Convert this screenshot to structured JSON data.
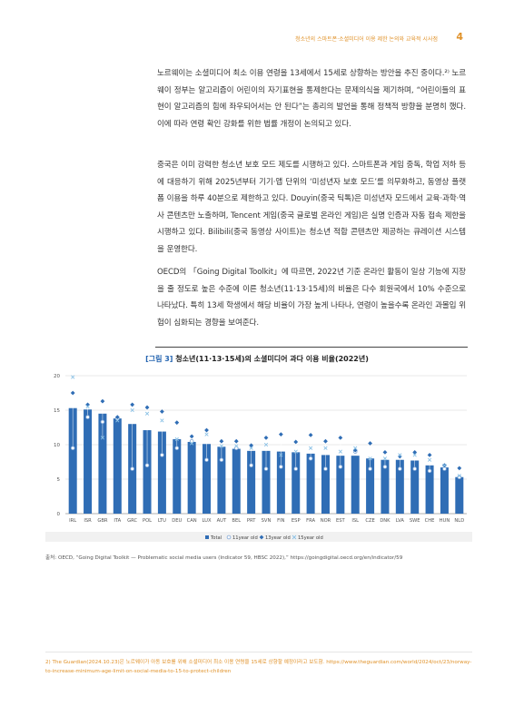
{
  "header": {
    "running_title": "청소년의 스마트폰·소셜미디어 이용 제한 논의와 교육적 시사점",
    "page_number": "4"
  },
  "paragraphs": [
    "노르웨이는 소셜미디어 최소 이용 연령을 13세에서 15세로 상향하는 방안을 추진 중이다.²⁾ 노르웨이 정부는 알고리즘이 어린이의 자기표현을 통제한다는 문제의식을 제기하며, “어린이들의 표현이 알고리즘의 힘에 좌우되어서는 안 된다”는 총리의 발언을 통해 정책적 방향을 분명히 했다. 이에 따라 연령 확인 강화를 위한 법률 개정이 논의되고 있다.",
    "중국은 이미 강력한 청소년 보호 모드 제도를 시행하고 있다. 스마트폰과 게임 중독, 학업 저하 등에 대응하기 위해 2025년부터 기기·앱 단위의 ‘미성년자 보호 모드’를 의무화하고, 동영상 플랫폼 이용을 하루 40분으로 제한하고 있다. Douyin(중국 틱톡)은 미성년자 모드에서 교육·과학·역사 콘텐츠만 노출하며, Tencent 게임(중국 글로벌 온라인 게임)은 실명 인증과 자동 접속 제한을 시행하고 있다. Bilibili(중국 동영상 사이트)는 청소년 적합 콘텐츠만 제공하는 큐레이션 시스템을 운영한다.",
    "OECD의 「Going Digital Toolkit」에 따르면, 2022년 기준 온라인 활동이 일상 기능에 지장을 줄 정도로 높은 수준에 이른 청소년(11·13·15세)의 비율은 다수 회원국에서 10% 수준으로 나타났다. 특히 13세 학생에서 해당 비율이 가장 높게 나타나, 연령이 높을수록 온라인 과몰입 위험이 심화되는 경향을 보여준다."
  ],
  "figure": {
    "tag": "[그림 3]",
    "title": "청소년(11·13·15세)의 소셜미디어 과다 이용 비율(2022년)"
  },
  "chart_data": {
    "type": "bar",
    "categories": [
      "IRL",
      "ISR",
      "GBR",
      "ITA",
      "GRC",
      "POL",
      "LTU",
      "DEU",
      "CAN",
      "LUX",
      "AUT",
      "BEL",
      "PRT",
      "SVN",
      "FIN",
      "ESP",
      "FRA",
      "NOR",
      "EST",
      "ISL",
      "CZE",
      "DNK",
      "LVA",
      "SWE",
      "CHE",
      "HUN",
      "NLD"
    ],
    "ylim": [
      0,
      20
    ],
    "yticks": [
      0,
      5,
      10,
      15,
      20
    ],
    "grid": true,
    "legend_position": "bottom",
    "series": [
      {
        "name": "Total",
        "marker": "bar",
        "color": "#2f6db5",
        "values": [
          15.3,
          15.1,
          14.5,
          13.8,
          13.0,
          12.1,
          11.9,
          10.8,
          10.4,
          10.1,
          9.7,
          9.4,
          9.1,
          9.1,
          9.0,
          8.9,
          8.7,
          8.5,
          8.4,
          8.4,
          8.0,
          7.8,
          7.8,
          7.7,
          7.0,
          6.7,
          5.3
        ]
      },
      {
        "name": "11year old",
        "marker": "circle-hollow",
        "color": "#7fa6d6",
        "values": [
          9.5,
          14.0,
          13.3,
          13.8,
          6.5,
          7.0,
          8.5,
          9.5,
          10.5,
          7.8,
          7.8,
          9.5,
          7.0,
          6.5,
          6.8,
          6.5,
          8.0,
          6.5,
          6.8,
          9.0,
          6.5,
          6.8,
          6.5,
          6.5,
          6.2,
          6.5,
          5.3
        ]
      },
      {
        "name": "13year old",
        "marker": "diamond",
        "color": "#2f6db5",
        "values": [
          17.5,
          15.8,
          16.3,
          14.0,
          15.8,
          15.4,
          14.8,
          13.2,
          11.2,
          12.1,
          10.5,
          10.5,
          9.9,
          11.0,
          11.5,
          10.4,
          11.4,
          10.5,
          11.0,
          9.2,
          10.2,
          8.9,
          8.3,
          8.9,
          8.5,
          7.0,
          6.6
        ]
      },
      {
        "name": "15year old",
        "marker": "x",
        "color": "#8cc2e6",
        "values": [
          19.8,
          15.5,
          11.0,
          13.5,
          15.0,
          14.5,
          13.5,
          10.8,
          10.2,
          11.5,
          9.8,
          9.8,
          9.5,
          10.0,
          8.5,
          9.0,
          9.5,
          9.5,
          9.0,
          9.5,
          8.0,
          8.0,
          8.5,
          8.5,
          7.8,
          7.0,
          5.5
        ]
      }
    ]
  },
  "source": "출처: OECD, “Going Digital Toolkit — Problematic social media users (Indicator 59, HBSC 2022),” https://goingdigital.oecd.org/en/indicator/59",
  "footnote": "2) The Guardian(2024.10.23)은 노르웨이가 아동 보호를 위해 소셜미디어 최소 이용 연령을 15세로 상향할 예정이라고 보도함. https://www.theguardian.com/world/2024/oct/23/norway-to-increase-minimum-age-limit-on-social-media-to-15-to-protect-children"
}
